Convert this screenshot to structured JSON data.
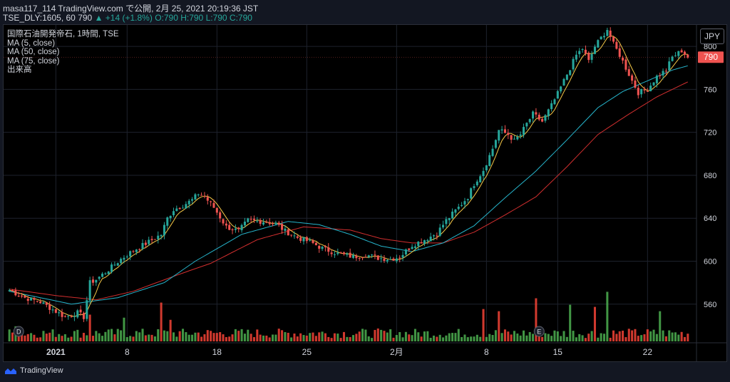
{
  "header": {
    "line1": "masa117_114 TradingView.com で公開, 2月 25, 2021 20:19:36 JST",
    "symbol": "TSE_DLY:1605, 60",
    "last": "790",
    "change": "▲ +14 (+1.8%)",
    "ohlc": "O:790 H:790 L:790 C:790"
  },
  "legend": {
    "title": "国際石油開発帝石, 1時間, TSE",
    "ma5": "MA (5, close)",
    "ma50": "MA (50, close)",
    "ma75": "MA (75, close)",
    "volume": "出来高"
  },
  "currency": "JPY",
  "price_label": "790",
  "brand": "TradingView",
  "colors": {
    "up": "#26a69a",
    "down": "#ef5350",
    "vol_up": "#4caf50",
    "vol_down": "#f44336",
    "ma5": "#f7c948",
    "ma50": "#26b5cc",
    "ma75": "#d32f2f",
    "price_tag": "#ef5350"
  },
  "icons": [
    "dividend-marker-icon",
    "earnings-marker-icon",
    "tradingview-logo-icon"
  ],
  "markers": [
    {
      "label": "D",
      "bar": 3
    },
    {
      "label": "E",
      "bar": 171
    }
  ],
  "chart_data": {
    "type": "candlestick",
    "y_ticks": [
      560,
      600,
      640,
      680,
      720,
      760,
      800
    ],
    "ylim": [
      524,
      820
    ],
    "x_ticks": [
      {
        "label": "2021",
        "bar": 15
      },
      {
        "label": "8",
        "bar": 38
      },
      {
        "label": "18",
        "bar": 67
      },
      {
        "label": "25",
        "bar": 96
      },
      {
        "label": "2月",
        "bar": 125
      },
      {
        "label": "8",
        "bar": 154
      },
      {
        "label": "15",
        "bar": 177
      },
      {
        "label": "22",
        "bar": 206
      }
    ],
    "n_bars": 220,
    "close_anchors": [
      [
        0,
        573
      ],
      [
        5,
        566
      ],
      [
        10,
        562
      ],
      [
        14,
        555
      ],
      [
        18,
        548
      ],
      [
        22,
        552
      ],
      [
        24,
        548
      ],
      [
        26,
        580
      ],
      [
        28,
        583
      ],
      [
        32,
        592
      ],
      [
        36,
        602
      ],
      [
        40,
        610
      ],
      [
        45,
        618
      ],
      [
        49,
        625
      ],
      [
        51,
        640
      ],
      [
        53,
        648
      ],
      [
        56,
        652
      ],
      [
        59,
        657
      ],
      [
        61,
        663
      ],
      [
        63,
        660
      ],
      [
        66,
        650
      ],
      [
        70,
        632
      ],
      [
        74,
        628
      ],
      [
        77,
        638
      ],
      [
        82,
        637
      ],
      [
        86,
        635
      ],
      [
        89,
        628
      ],
      [
        93,
        622
      ],
      [
        97,
        618
      ],
      [
        101,
        612
      ],
      [
        106,
        607
      ],
      [
        111,
        604
      ],
      [
        115,
        606
      ],
      [
        119,
        603
      ],
      [
        123,
        602
      ],
      [
        126,
        604
      ],
      [
        130,
        615
      ],
      [
        134,
        620
      ],
      [
        138,
        626
      ],
      [
        141,
        638
      ],
      [
        145,
        650
      ],
      [
        148,
        660
      ],
      [
        150,
        672
      ],
      [
        153,
        685
      ],
      [
        156,
        705
      ],
      [
        158,
        722
      ],
      [
        161,
        718
      ],
      [
        163,
        712
      ],
      [
        165,
        718
      ],
      [
        167,
        728
      ],
      [
        169,
        737
      ],
      [
        172,
        730
      ],
      [
        175,
        745
      ],
      [
        177,
        756
      ],
      [
        179,
        768
      ],
      [
        181,
        780
      ],
      [
        183,
        792
      ],
      [
        185,
        798
      ],
      [
        187,
        786
      ],
      [
        189,
        800
      ],
      [
        191,
        808
      ],
      [
        193,
        816
      ],
      [
        195,
        802
      ],
      [
        197,
        792
      ],
      [
        199,
        780
      ],
      [
        201,
        768
      ],
      [
        203,
        757
      ],
      [
        206,
        760
      ],
      [
        209,
        772
      ],
      [
        212,
        778
      ],
      [
        214,
        790
      ],
      [
        217,
        796
      ],
      [
        219,
        790
      ]
    ],
    "ma50_anchors": [
      [
        0,
        572
      ],
      [
        10,
        566
      ],
      [
        20,
        560
      ],
      [
        35,
        566
      ],
      [
        50,
        580
      ],
      [
        60,
        600
      ],
      [
        75,
        625
      ],
      [
        90,
        637
      ],
      [
        100,
        634
      ],
      [
        110,
        625
      ],
      [
        120,
        614
      ],
      [
        130,
        609
      ],
      [
        140,
        617
      ],
      [
        150,
        633
      ],
      [
        160,
        659
      ],
      [
        170,
        684
      ],
      [
        180,
        713
      ],
      [
        190,
        743
      ],
      [
        198,
        758
      ],
      [
        206,
        768
      ],
      [
        214,
        778
      ],
      [
        219,
        782
      ]
    ],
    "ma75_anchors": [
      [
        0,
        574
      ],
      [
        15,
        568
      ],
      [
        28,
        564
      ],
      [
        40,
        572
      ],
      [
        55,
        588
      ],
      [
        65,
        598
      ],
      [
        80,
        620
      ],
      [
        95,
        632
      ],
      [
        110,
        629
      ],
      [
        120,
        621
      ],
      [
        130,
        617
      ],
      [
        140,
        617
      ],
      [
        150,
        627
      ],
      [
        160,
        643
      ],
      [
        170,
        660
      ],
      [
        180,
        688
      ],
      [
        190,
        718
      ],
      [
        200,
        737
      ],
      [
        209,
        753
      ],
      [
        219,
        767
      ]
    ],
    "volume_peaks": [
      {
        "bar": 2,
        "value": 0.35,
        "up": true
      },
      {
        "bar": 26,
        "value": 0.62,
        "up": false
      },
      {
        "bar": 37,
        "value": 0.55,
        "up": true
      },
      {
        "bar": 49,
        "value": 0.9,
        "up": false
      },
      {
        "bar": 52,
        "value": 0.5,
        "up": false
      },
      {
        "bar": 153,
        "value": 0.75,
        "up": false
      },
      {
        "bar": 158,
        "value": 0.7,
        "up": false
      },
      {
        "bar": 170,
        "value": 1.0,
        "up": false
      },
      {
        "bar": 181,
        "value": 0.85,
        "up": true
      },
      {
        "bar": 189,
        "value": 0.8,
        "up": false
      },
      {
        "bar": 193,
        "value": 1.15,
        "up": true
      },
      {
        "bar": 210,
        "value": 0.7,
        "up": true
      }
    ]
  }
}
